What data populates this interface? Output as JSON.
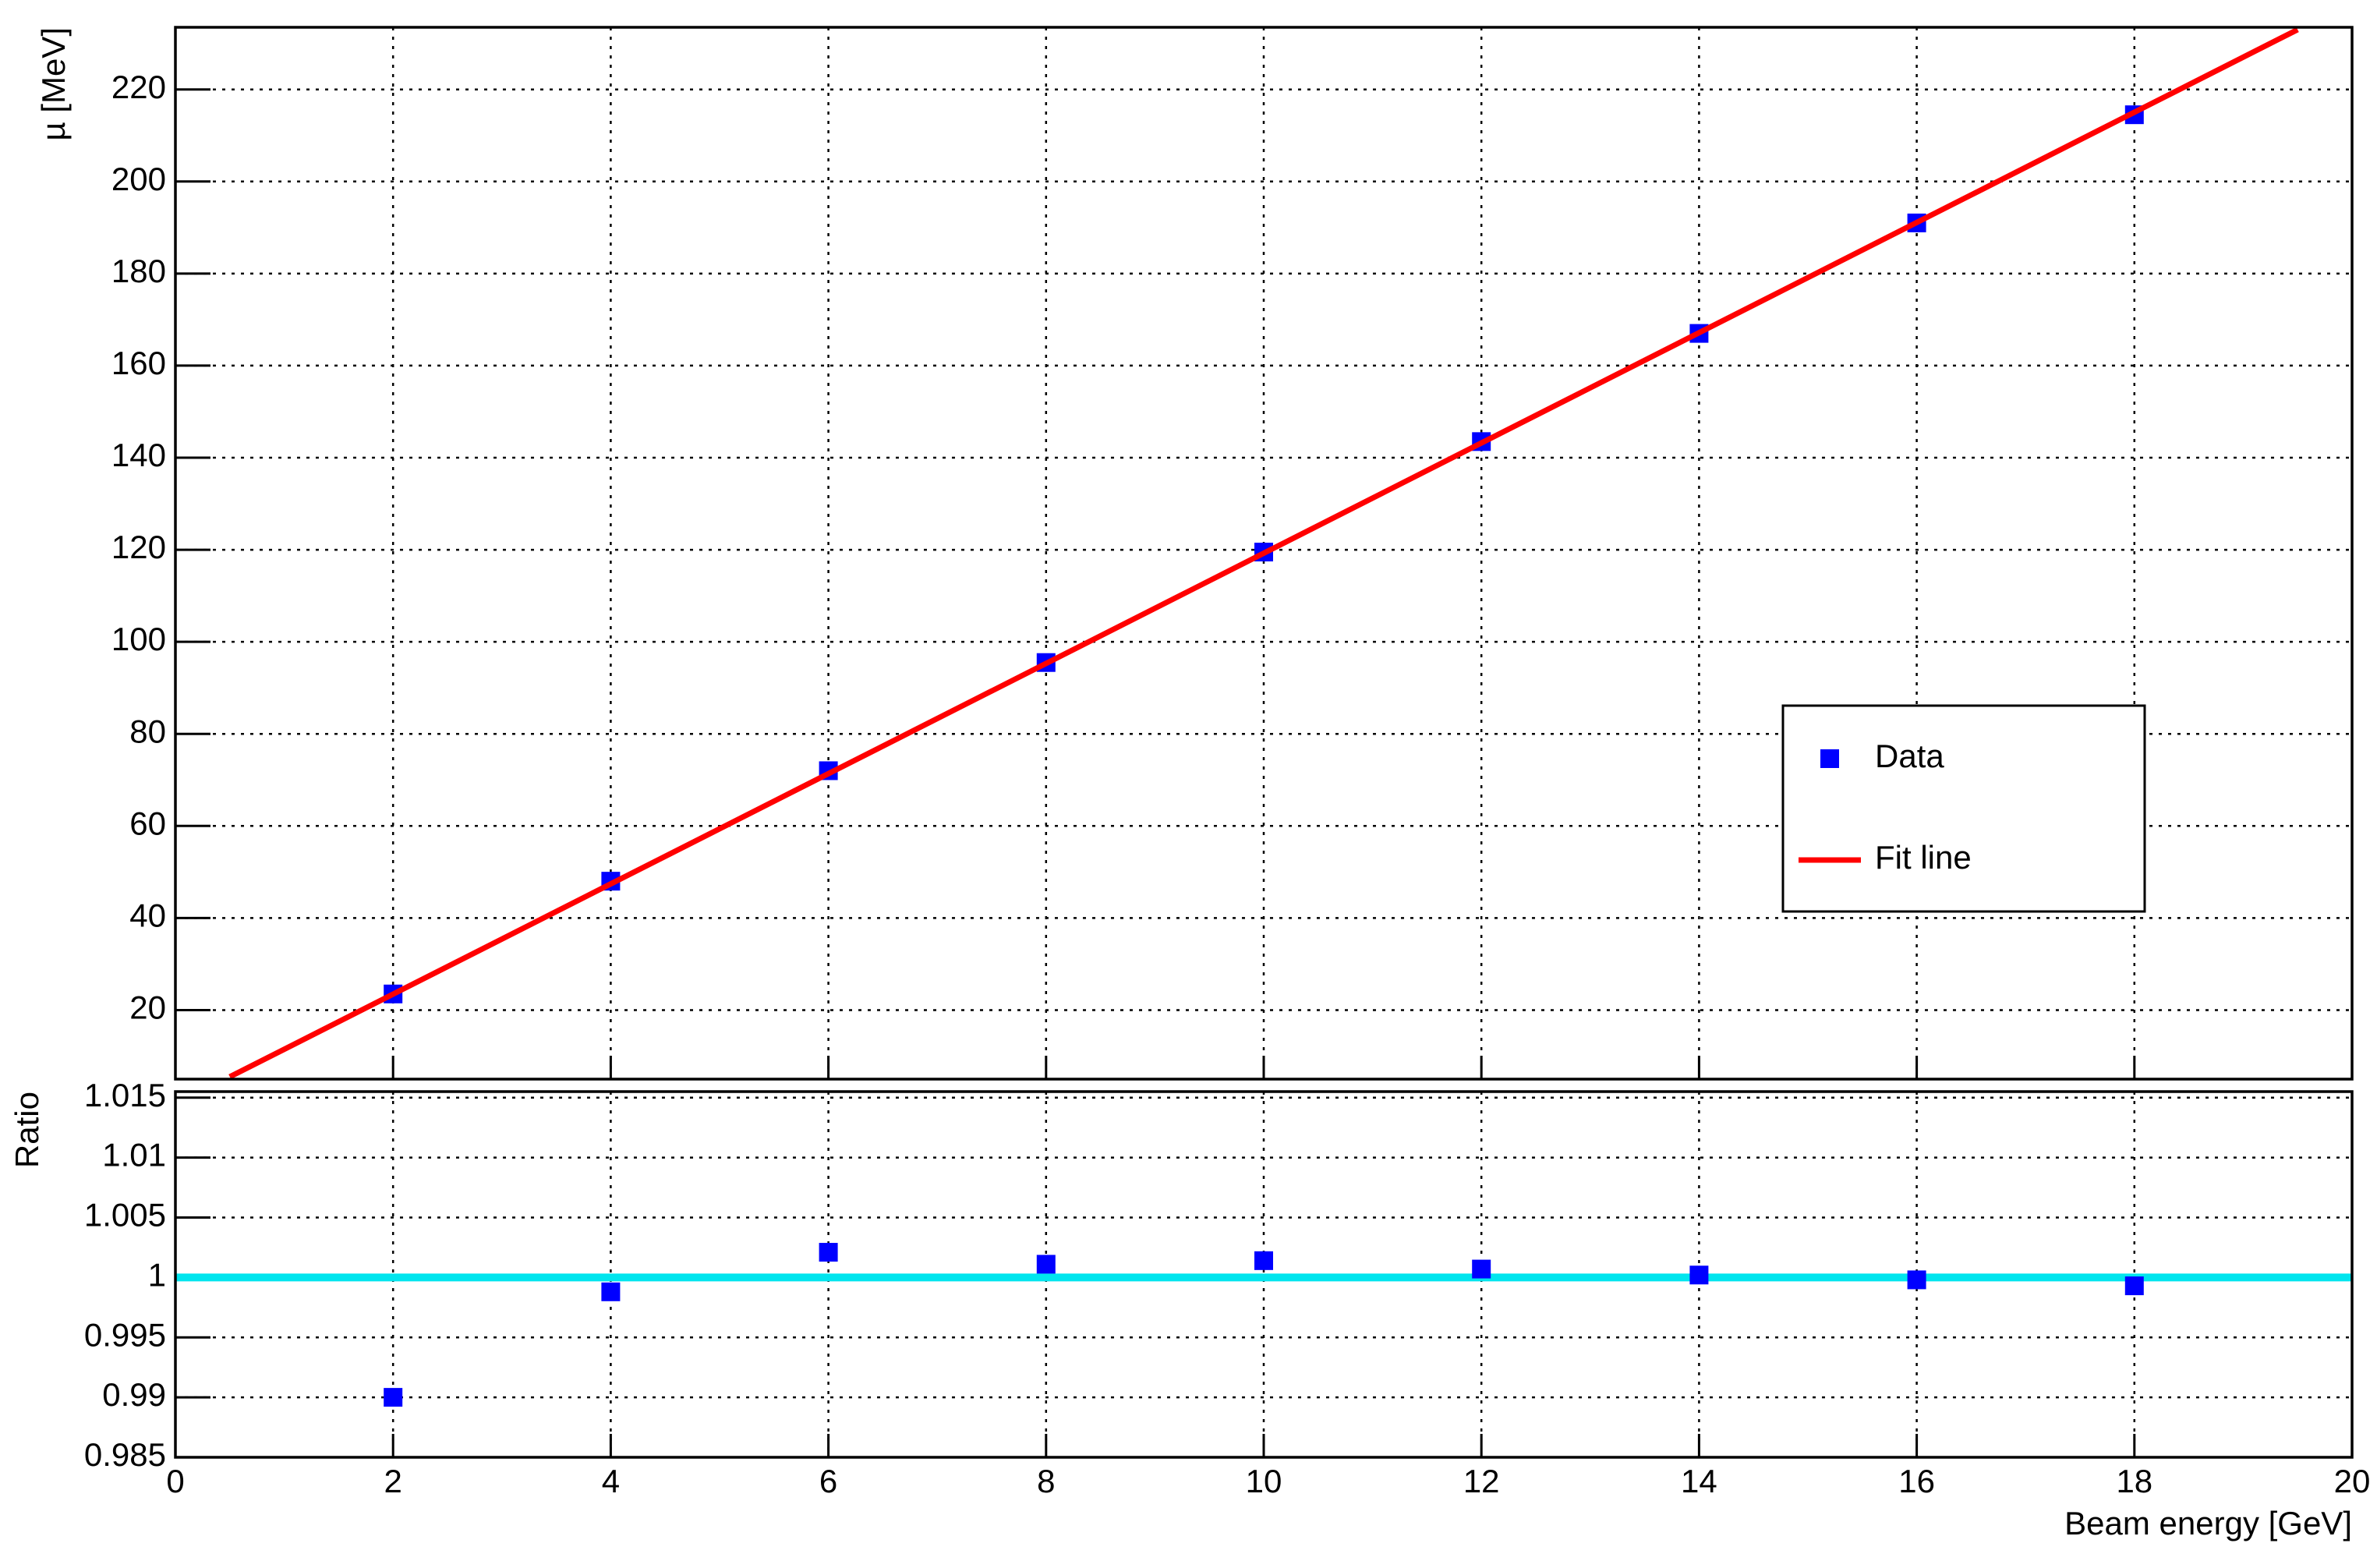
{
  "chart_data": [
    {
      "type": "scatter",
      "y_label": "µ [MeV]",
      "xlim": [
        0,
        20
      ],
      "xticks": [
        0,
        2,
        4,
        6,
        8,
        10,
        12,
        14,
        16,
        18,
        20
      ],
      "ylim": [
        5,
        233.5
      ],
      "yticks": [
        20,
        40,
        60,
        80,
        100,
        120,
        140,
        160,
        180,
        200,
        220
      ],
      "grid": true,
      "series": [
        {
          "name": "Data",
          "mode": "markers",
          "color": "#0000ff",
          "x": [
            2,
            4,
            6,
            8,
            10,
            12,
            14,
            16,
            18
          ],
          "values": [
            23.5,
            48,
            72,
            95.5,
            119.5,
            143.5,
            167,
            191,
            214.5
          ]
        },
        {
          "name": "Fit line",
          "mode": "line",
          "color": "#ff0000",
          "x": [
            0.5,
            19.5
          ],
          "values": [
            5.5,
            233
          ]
        }
      ]
    },
    {
      "type": "scatter",
      "y_label": "Ratio",
      "x_label": "Beam energy [GeV]",
      "xlim": [
        0,
        20
      ],
      "xticks": [
        0,
        2,
        4,
        6,
        8,
        10,
        12,
        14,
        16,
        18,
        20
      ],
      "ylim": [
        0.985,
        1.0155
      ],
      "yticks": [
        0.985,
        0.99,
        0.995,
        1,
        1.005,
        1.01,
        1.015
      ],
      "grid": true,
      "series": [
        {
          "mode": "line",
          "color": "#00e5ee",
          "x": [
            0,
            20
          ],
          "values": [
            1,
            1
          ]
        },
        {
          "mode": "markers",
          "color": "#0000ff",
          "x": [
            2,
            4,
            6,
            8,
            10,
            12,
            14,
            16,
            18
          ],
          "values": [
            0.99,
            0.9988,
            1.0021,
            1.0011,
            1.0014,
            1.0007,
            1.0002,
            0.9998,
            0.9993
          ]
        }
      ]
    }
  ]
}
